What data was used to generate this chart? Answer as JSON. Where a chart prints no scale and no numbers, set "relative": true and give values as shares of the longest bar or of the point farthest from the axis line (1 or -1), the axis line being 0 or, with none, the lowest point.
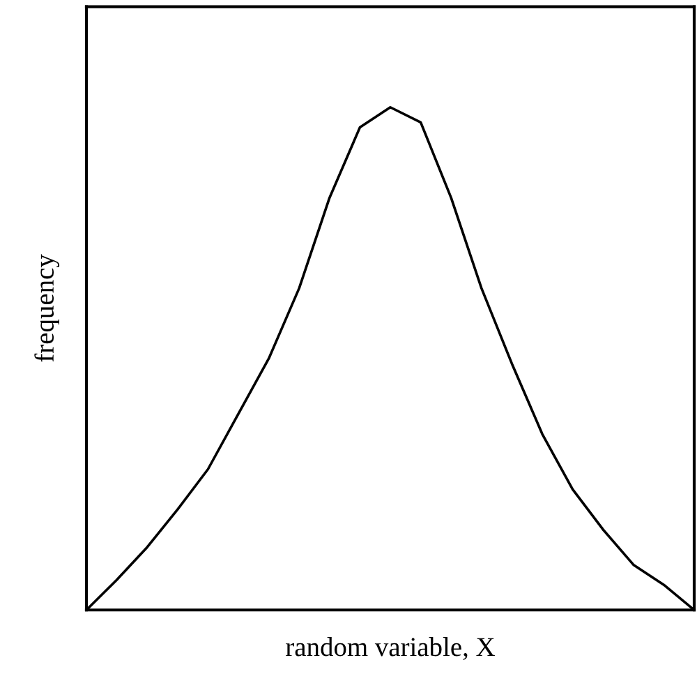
{
  "chart_data": {
    "type": "line",
    "xlabel": "random variable, X",
    "ylabel": "frequency",
    "relative": true,
    "categories": [
      null,
      null,
      null,
      null,
      null,
      null,
      null,
      null,
      null,
      null,
      null,
      null,
      null,
      null,
      null,
      null,
      null,
      null,
      null,
      null,
      null
    ],
    "series": [
      {
        "color": "#000000",
        "values": [
          0,
          0.06,
          0.125,
          0.2,
          0.28,
          0.39,
          0.5,
          0.64,
          0.82,
          0.96,
          1.0,
          0.97,
          0.82,
          0.64,
          0.49,
          0.35,
          0.24,
          0.16,
          0.09,
          0.05,
          0
        ]
      }
    ],
    "legend": false
  }
}
